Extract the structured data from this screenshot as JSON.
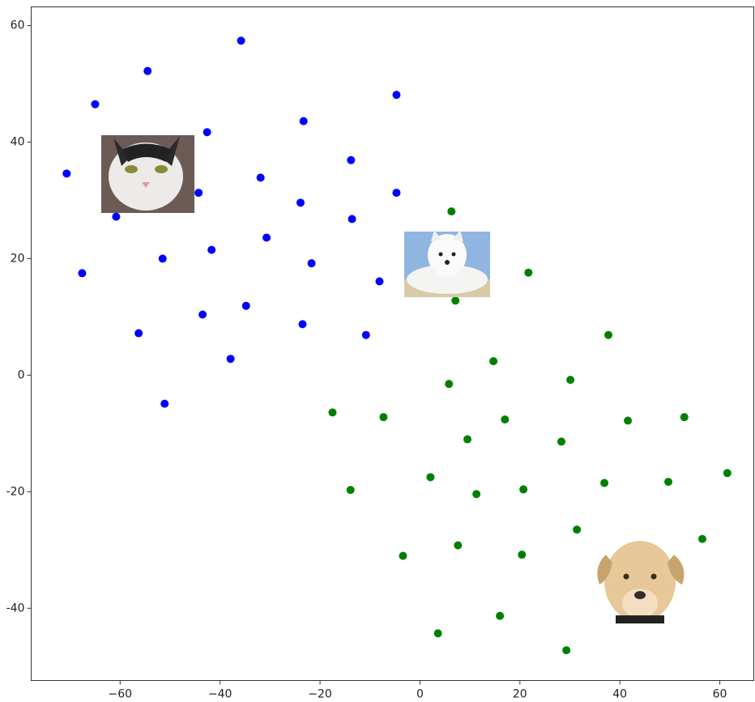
{
  "chart_data": {
    "type": "scatter",
    "xlim": [
      -77.8,
      66.8
    ],
    "ylim": [
      -52.4,
      63.2
    ],
    "xticks": [
      {
        "value": -60,
        "label": "−60"
      },
      {
        "value": -40,
        "label": "−40"
      },
      {
        "value": -20,
        "label": "−20"
      },
      0,
      20,
      40,
      60
    ],
    "yticks": [
      -40,
      -20,
      0,
      20,
      40,
      60
    ],
    "series": [
      {
        "color": "#0000ff",
        "x": [
          -35.8,
          -54.5,
          -65.0,
          -4.7,
          -42.6,
          -23.3,
          -13.8,
          -70.7,
          -31.9,
          -44.3,
          -4.7,
          -23.9,
          -13.6,
          -60.8,
          -30.7,
          -41.7,
          -51.5,
          -21.7,
          -67.6,
          -8.1,
          -34.8,
          -43.5,
          -23.5,
          -10.8,
          -56.3,
          -37.9,
          -51.1
        ],
        "values": [
          57.4,
          52.2,
          46.5,
          48.1,
          41.7,
          43.6,
          36.9,
          34.6,
          33.9,
          31.3,
          31.3,
          29.6,
          26.8,
          27.2,
          23.6,
          21.5,
          20.0,
          19.2,
          17.5,
          16.1,
          11.9,
          10.4,
          8.75,
          6.9,
          7.2,
          2.8,
          -4.9
        ]
      },
      {
        "color": "#008000",
        "x": [
          6.3,
          21.7,
          7.1,
          37.7,
          14.7,
          30.1,
          5.8,
          -17.5,
          -7.3,
          17.0,
          41.6,
          52.9,
          9.5,
          28.3,
          61.5,
          2.1,
          -13.9,
          11.3,
          20.7,
          36.9,
          49.7,
          31.4,
          56.5,
          -3.4,
          7.6,
          20.4,
          3.6,
          16.0,
          29.3
        ],
        "values": [
          28.1,
          17.6,
          12.8,
          6.9,
          2.4,
          -0.8,
          -1.5,
          -6.4,
          -7.2,
          -7.6,
          -7.8,
          -7.2,
          -11.0,
          -11.4,
          -16.8,
          -17.5,
          -19.7,
          -20.4,
          -19.6,
          -18.5,
          -18.3,
          -26.5,
          -28.1,
          -31.0,
          -29.2,
          -30.8,
          -44.3,
          -41.3,
          -47.2
        ]
      }
    ]
  }
}
